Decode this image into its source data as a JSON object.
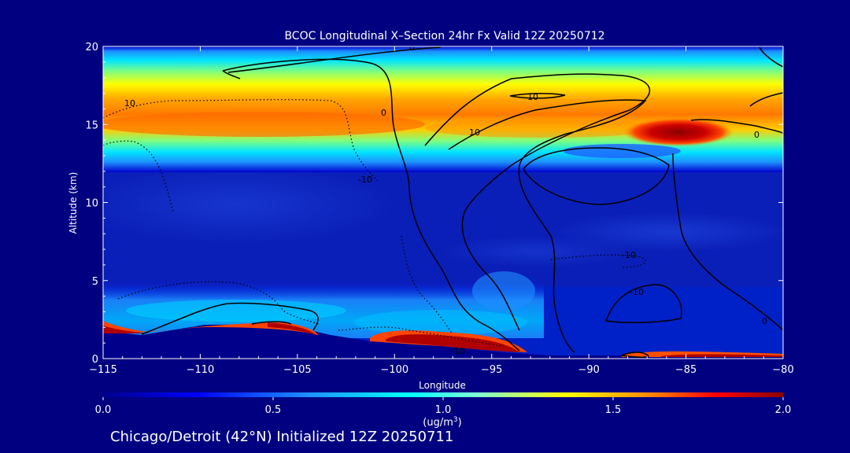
{
  "chart_data": {
    "type": "heatmap",
    "title": "BCOC Longitudinal X–Section 24hr  Fx Valid 12Z 20250712",
    "xlabel": "Longitude",
    "ylabel": "Altitude (km)",
    "xlim": [
      -115,
      -80
    ],
    "ylim": [
      0,
      20
    ],
    "x_ticks": [
      -115,
      -110,
      -105,
      -100,
      -95,
      -90,
      -85,
      -80
    ],
    "x_tick_labels": [
      "−115",
      "−110",
      "−105",
      "−100",
      "−95",
      "−90",
      "−85",
      "−80"
    ],
    "y_ticks": [
      0,
      5,
      10,
      15,
      20
    ],
    "y_tick_labels": [
      "0",
      "5",
      "10",
      "15",
      "20"
    ],
    "colorbar": {
      "min": 0.0,
      "max": 2.0,
      "ticks": [
        0.0,
        0.5,
        1.0,
        1.5,
        2.0
      ],
      "tick_labels": [
        "0.0",
        "0.5",
        "1.0",
        "1.5",
        "2.0"
      ],
      "units_line1": "(ug/m",
      "units_sup": "3",
      "units_line2": ")",
      "colormap": [
        "#00008b",
        "#0000ff",
        "#1e90ff",
        "#00ffff",
        "#ffff00",
        "#ff8c00",
        "#ff0000",
        "#8b0000"
      ]
    },
    "features": [
      {
        "name": "upper layer",
        "lon_range": [
          -115,
          -80
        ],
        "alt_range": [
          12.5,
          16.5
        ],
        "peak_value": 1.4
      },
      {
        "name": "upper maximum",
        "lon_center": -85,
        "alt_center": 14.5,
        "peak_value": 2.0
      },
      {
        "name": "boundary layer west",
        "lon_range": [
          -115,
          -104
        ],
        "alt_range": [
          1.0,
          2.5
        ],
        "peak_value": 1.9
      },
      {
        "name": "boundary layer central",
        "lon_range": [
          -101,
          -94
        ],
        "alt_range": [
          0.5,
          1.5
        ],
        "peak_value": 2.0
      },
      {
        "name": "surface band east",
        "lon_range": [
          -88,
          -80
        ],
        "alt_range": [
          0,
          0.5
        ],
        "peak_value": 1.7
      }
    ],
    "contour_labels": [
      "0",
      "10",
      "10",
      "0",
      "-10",
      "10",
      "-10",
      "0",
      "-10",
      "-10",
      "0"
    ],
    "grid": false,
    "legend": "colorbar-bottom"
  },
  "footer": {
    "caption": "Chicago/Detroit (42°N) Initialized 12Z 20250711"
  }
}
